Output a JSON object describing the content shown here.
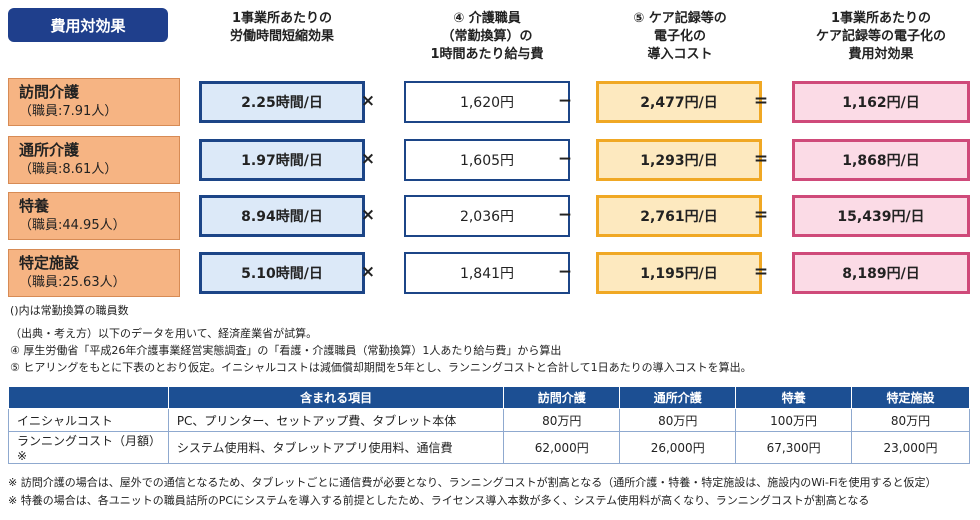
{
  "tag": "費用対効果",
  "headers": {
    "col1": [
      "1事業所あたりの",
      "労働時間短縮効果"
    ],
    "col2": [
      "④ 介護職員",
      "（常勤換算）の",
      "1時間あたり給与費"
    ],
    "col3": [
      "⑤ ケア記録等の",
      "電子化の",
      "導入コスト"
    ],
    "col4": [
      "1事業所あたりの",
      "ケア記録等の電子化の",
      "費用対効果"
    ]
  },
  "operators": {
    "times": "×",
    "minus": "−",
    "equals": "="
  },
  "rows": [
    {
      "name": "訪問介護",
      "staff": "（職員:7.91人）",
      "hours": "2.25時間/日",
      "wage": "1,620円",
      "cost": "2,477円/日",
      "effect": "1,162円/日"
    },
    {
      "name": "通所介護",
      "staff": "（職員:8.61人）",
      "hours": "1.97時間/日",
      "wage": "1,605円",
      "cost": "1,293円/日",
      "effect": "1,868円/日"
    },
    {
      "name": "特養",
      "staff": "（職員:44.95人）",
      "hours": "8.94時間/日",
      "wage": "2,036円",
      "cost": "2,761円/日",
      "effect": "15,439円/日"
    },
    {
      "name": "特定施設",
      "staff": "（職員:25.63人）",
      "hours": "5.10時間/日",
      "wage": "1,841円",
      "cost": "1,195円/日",
      "effect": "8,189円/日"
    }
  ],
  "note_paren": "()内は常勤換算の職員数",
  "source_lines": [
    "（出典・考え方）以下のデータを用いて、経済産業省が試算。",
    "④ 厚生労働省「平成26年介護事業経営実態調査」の「看護・介護職員（常勤換算）1人あたり給与費」から算出",
    "⑤ ヒアリングをもとに下表のとおり仮定。イニシャルコストは減価償却期間を5年とし、ランニングコストと合計して1日あたりの導入コストを算出。"
  ],
  "cost_table": {
    "headers": [
      "",
      "含まれる項目",
      "訪問介護",
      "通所介護",
      "特養",
      "特定施設"
    ],
    "rows": [
      [
        "イニシャルコスト",
        "PC、プリンター、セットアップ費、タブレット本体",
        "80万円",
        "80万円",
        "100万円",
        "80万円"
      ],
      [
        "ランニングコスト（月額）※",
        "システム使用料、タブレットアプリ使用料、通信費",
        "62,000円",
        "26,000円",
        "67,300円",
        "23,000円"
      ]
    ]
  },
  "footnotes": [
    "※ 訪問介護の場合は、屋外での通信となるため、タブレットごとに通信費が必要となり、ランニングコストが割高となる（通所介護・特養・特定施設は、施設内のWi-Fiを使用すると仮定）",
    "※ 特養の場合は、各ユニットの職員詰所のPCにシステムを導入する前提としたため、ライセンス導入本数が多く、システム使用料が高くなり、ランニングコストが割高となる"
  ]
}
